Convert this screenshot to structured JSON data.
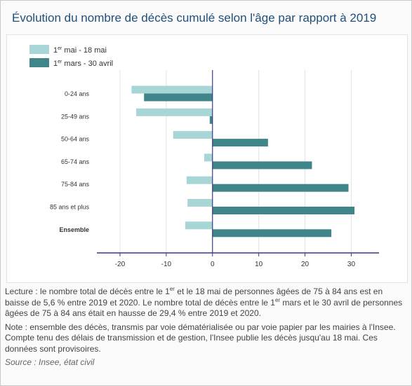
{
  "title": "Évolution du nombre de décès cumulé selon l'âge par rapport à 2019",
  "notes": {
    "lecture_1": "Lecture : le nombre total de décès entre le 1",
    "lecture_sup_1": "er",
    "lecture_2": " et le 18 mai de personnes âgées de 75 à 84 ans est en baisse de 5,6 % entre 2019 et 2020. Le nombre total de décès entre le 1",
    "lecture_sup_2": "er",
    "lecture_3": " mars et le 30 avril de personnes âgées de 75 à 84 ans était en hausse de 29,4 % entre 2019 et 2020.",
    "note": "Note : ensemble des décès, transmis par voie dématérialisée ou par voie papier par les mairies à l'Insee. Compte tenu des délais de transmission et de gestion, l'Insee publie les décès jusqu'au 18 mai. Ces données sont provisoires.",
    "source": "Source : Insee, état civil"
  },
  "colors": {
    "title": "#1f4f7a",
    "series_light": "#a8d5d5",
    "series_dark": "#3f8589",
    "axis": "#3a3a7a",
    "grid": "#e3e3e3"
  },
  "chart_data": {
    "type": "bar",
    "orientation": "horizontal",
    "categories": [
      "0-24 ans",
      "25-49 ans",
      "50-64 ans",
      "65-74 ans",
      "75-84 ans",
      "85 ans et plus",
      "Ensemble"
    ],
    "bold_categories": [
      "Ensemble"
    ],
    "series": [
      {
        "name": "1er mai - 18 mai",
        "name_base": "1",
        "name_sup": "er",
        "name_rest": " mai - 18 mai",
        "color": "#a8d5d5",
        "values": [
          -17.5,
          -16.5,
          -8.5,
          -1.8,
          -5.6,
          -5.4,
          -5.9
        ]
      },
      {
        "name": "1er mars - 30 avril",
        "name_base": "1",
        "name_sup": "er",
        "name_rest": " mars - 30 avril",
        "color": "#3f8589",
        "values": [
          -14.8,
          -0.6,
          12.0,
          21.5,
          29.4,
          30.7,
          25.7
        ]
      }
    ],
    "x_ticks": [
      -20,
      -10,
      0,
      10,
      20,
      30
    ],
    "xlim": [
      -25,
      36
    ],
    "grid": true,
    "legend": "top-left"
  }
}
